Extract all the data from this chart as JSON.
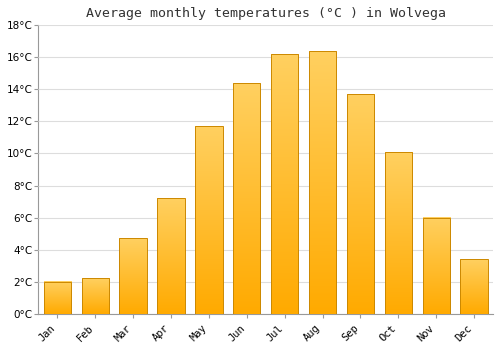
{
  "title": "Average monthly temperatures (°C ) in Wolvega",
  "months": [
    "Jan",
    "Feb",
    "Mar",
    "Apr",
    "May",
    "Jun",
    "Jul",
    "Aug",
    "Sep",
    "Oct",
    "Nov",
    "Dec"
  ],
  "values": [
    2.0,
    2.2,
    4.7,
    7.2,
    11.7,
    14.4,
    16.2,
    16.4,
    13.7,
    10.1,
    6.0,
    3.4
  ],
  "bar_color_main": "#FFAA00",
  "bar_color_light": "#FFD060",
  "bar_edge_color": "#CC8800",
  "background_color": "#FFFFFF",
  "grid_color": "#DDDDDD",
  "ylim": [
    0,
    18
  ],
  "yticks": [
    0,
    2,
    4,
    6,
    8,
    10,
    12,
    14,
    16,
    18
  ],
  "title_fontsize": 9.5,
  "tick_fontsize": 7.5,
  "bar_width": 0.72
}
